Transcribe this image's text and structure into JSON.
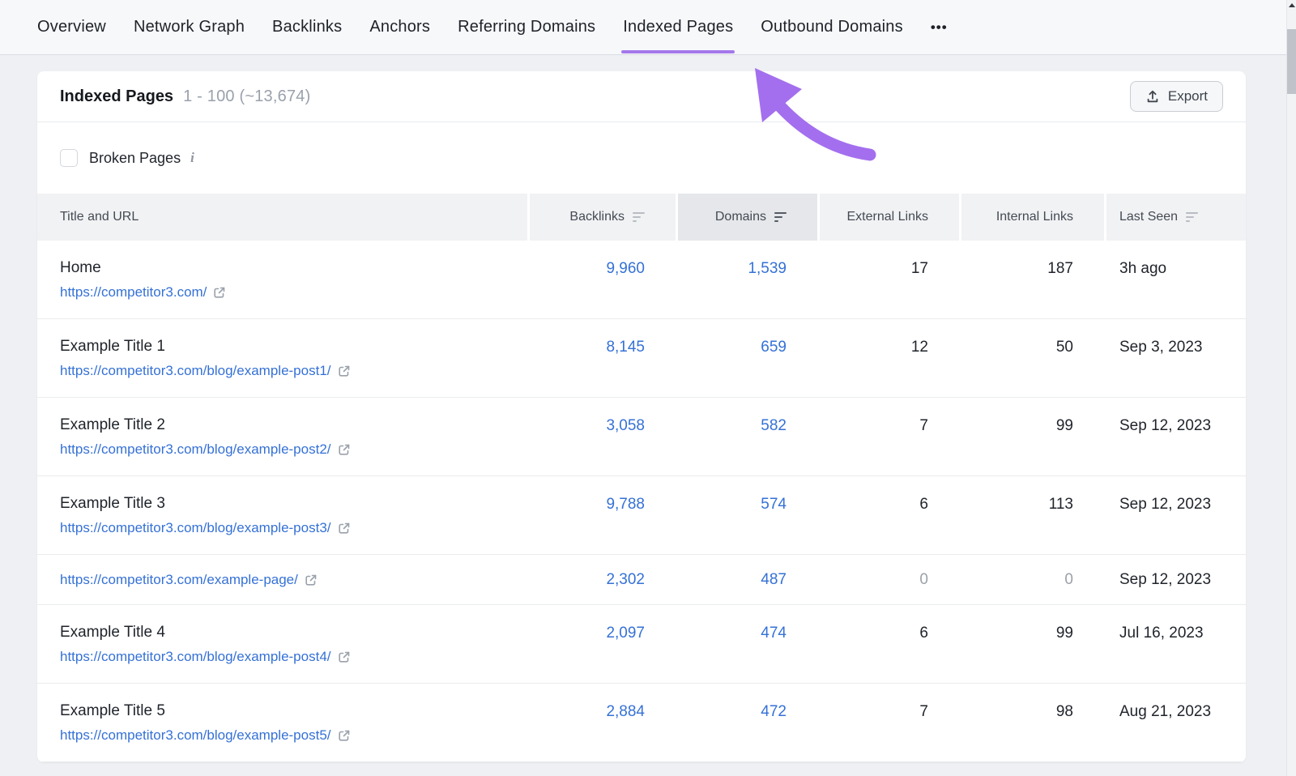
{
  "nav": {
    "tabs": [
      {
        "label": "Overview",
        "active": false
      },
      {
        "label": "Network Graph",
        "active": false
      },
      {
        "label": "Backlinks",
        "active": false
      },
      {
        "label": "Anchors",
        "active": false
      },
      {
        "label": "Referring Domains",
        "active": false
      },
      {
        "label": "Indexed Pages",
        "active": true
      },
      {
        "label": "Outbound Domains",
        "active": false
      }
    ],
    "more_label": "•••"
  },
  "header": {
    "title": "Indexed Pages",
    "range": "1 - 100 (~13,674)",
    "export_label": "Export"
  },
  "filters": {
    "broken_pages_label": "Broken Pages",
    "broken_pages_checked": false
  },
  "table": {
    "columns": [
      {
        "label": "Title and URL",
        "sortable": false,
        "active": false,
        "align": "left"
      },
      {
        "label": "Backlinks",
        "sortable": true,
        "active": false,
        "align": "right"
      },
      {
        "label": "Domains",
        "sortable": true,
        "active": true,
        "align": "right"
      },
      {
        "label": "External Links",
        "sortable": false,
        "active": false,
        "align": "right"
      },
      {
        "label": "Internal Links",
        "sortable": false,
        "active": false,
        "align": "right"
      },
      {
        "label": "Last Seen",
        "sortable": true,
        "active": false,
        "align": "left"
      }
    ],
    "rows": [
      {
        "title": "Home",
        "url": "https://competitor3.com/",
        "backlinks": "9,960",
        "domains": "1,539",
        "external": "17",
        "internal": "187",
        "last_seen": "3h ago"
      },
      {
        "title": "Example Title 1",
        "url": "https://competitor3.com/blog/example-post1/",
        "backlinks": "8,145",
        "domains": "659",
        "external": "12",
        "internal": "50",
        "last_seen": "Sep 3, 2023"
      },
      {
        "title": "Example Title 2",
        "url": "https://competitor3.com/blog/example-post2/",
        "backlinks": "3,058",
        "domains": "582",
        "external": "7",
        "internal": "99",
        "last_seen": "Sep 12, 2023"
      },
      {
        "title": "Example Title 3",
        "url": "https://competitor3.com/blog/example-post3/",
        "backlinks": "9,788",
        "domains": "574",
        "external": "6",
        "internal": "113",
        "last_seen": "Sep 12, 2023"
      },
      {
        "title": "",
        "url": "https://competitor3.com/example-page/",
        "backlinks": "2,302",
        "domains": "487",
        "external": "0",
        "internal": "0",
        "last_seen": "Sep 12, 2023"
      },
      {
        "title": "Example Title 4",
        "url": "https://competitor3.com/blog/example-post4/",
        "backlinks": "2,097",
        "domains": "474",
        "external": "6",
        "internal": "99",
        "last_seen": "Jul 16, 2023"
      },
      {
        "title": "Example Title 5",
        "url": "https://competitor3.com/blog/example-post5/",
        "backlinks": "2,884",
        "domains": "472",
        "external": "7",
        "internal": "98",
        "last_seen": "Aug 21, 2023"
      }
    ]
  },
  "colors": {
    "accent_purple": "#a36fee",
    "link_blue": "#3571d6"
  }
}
